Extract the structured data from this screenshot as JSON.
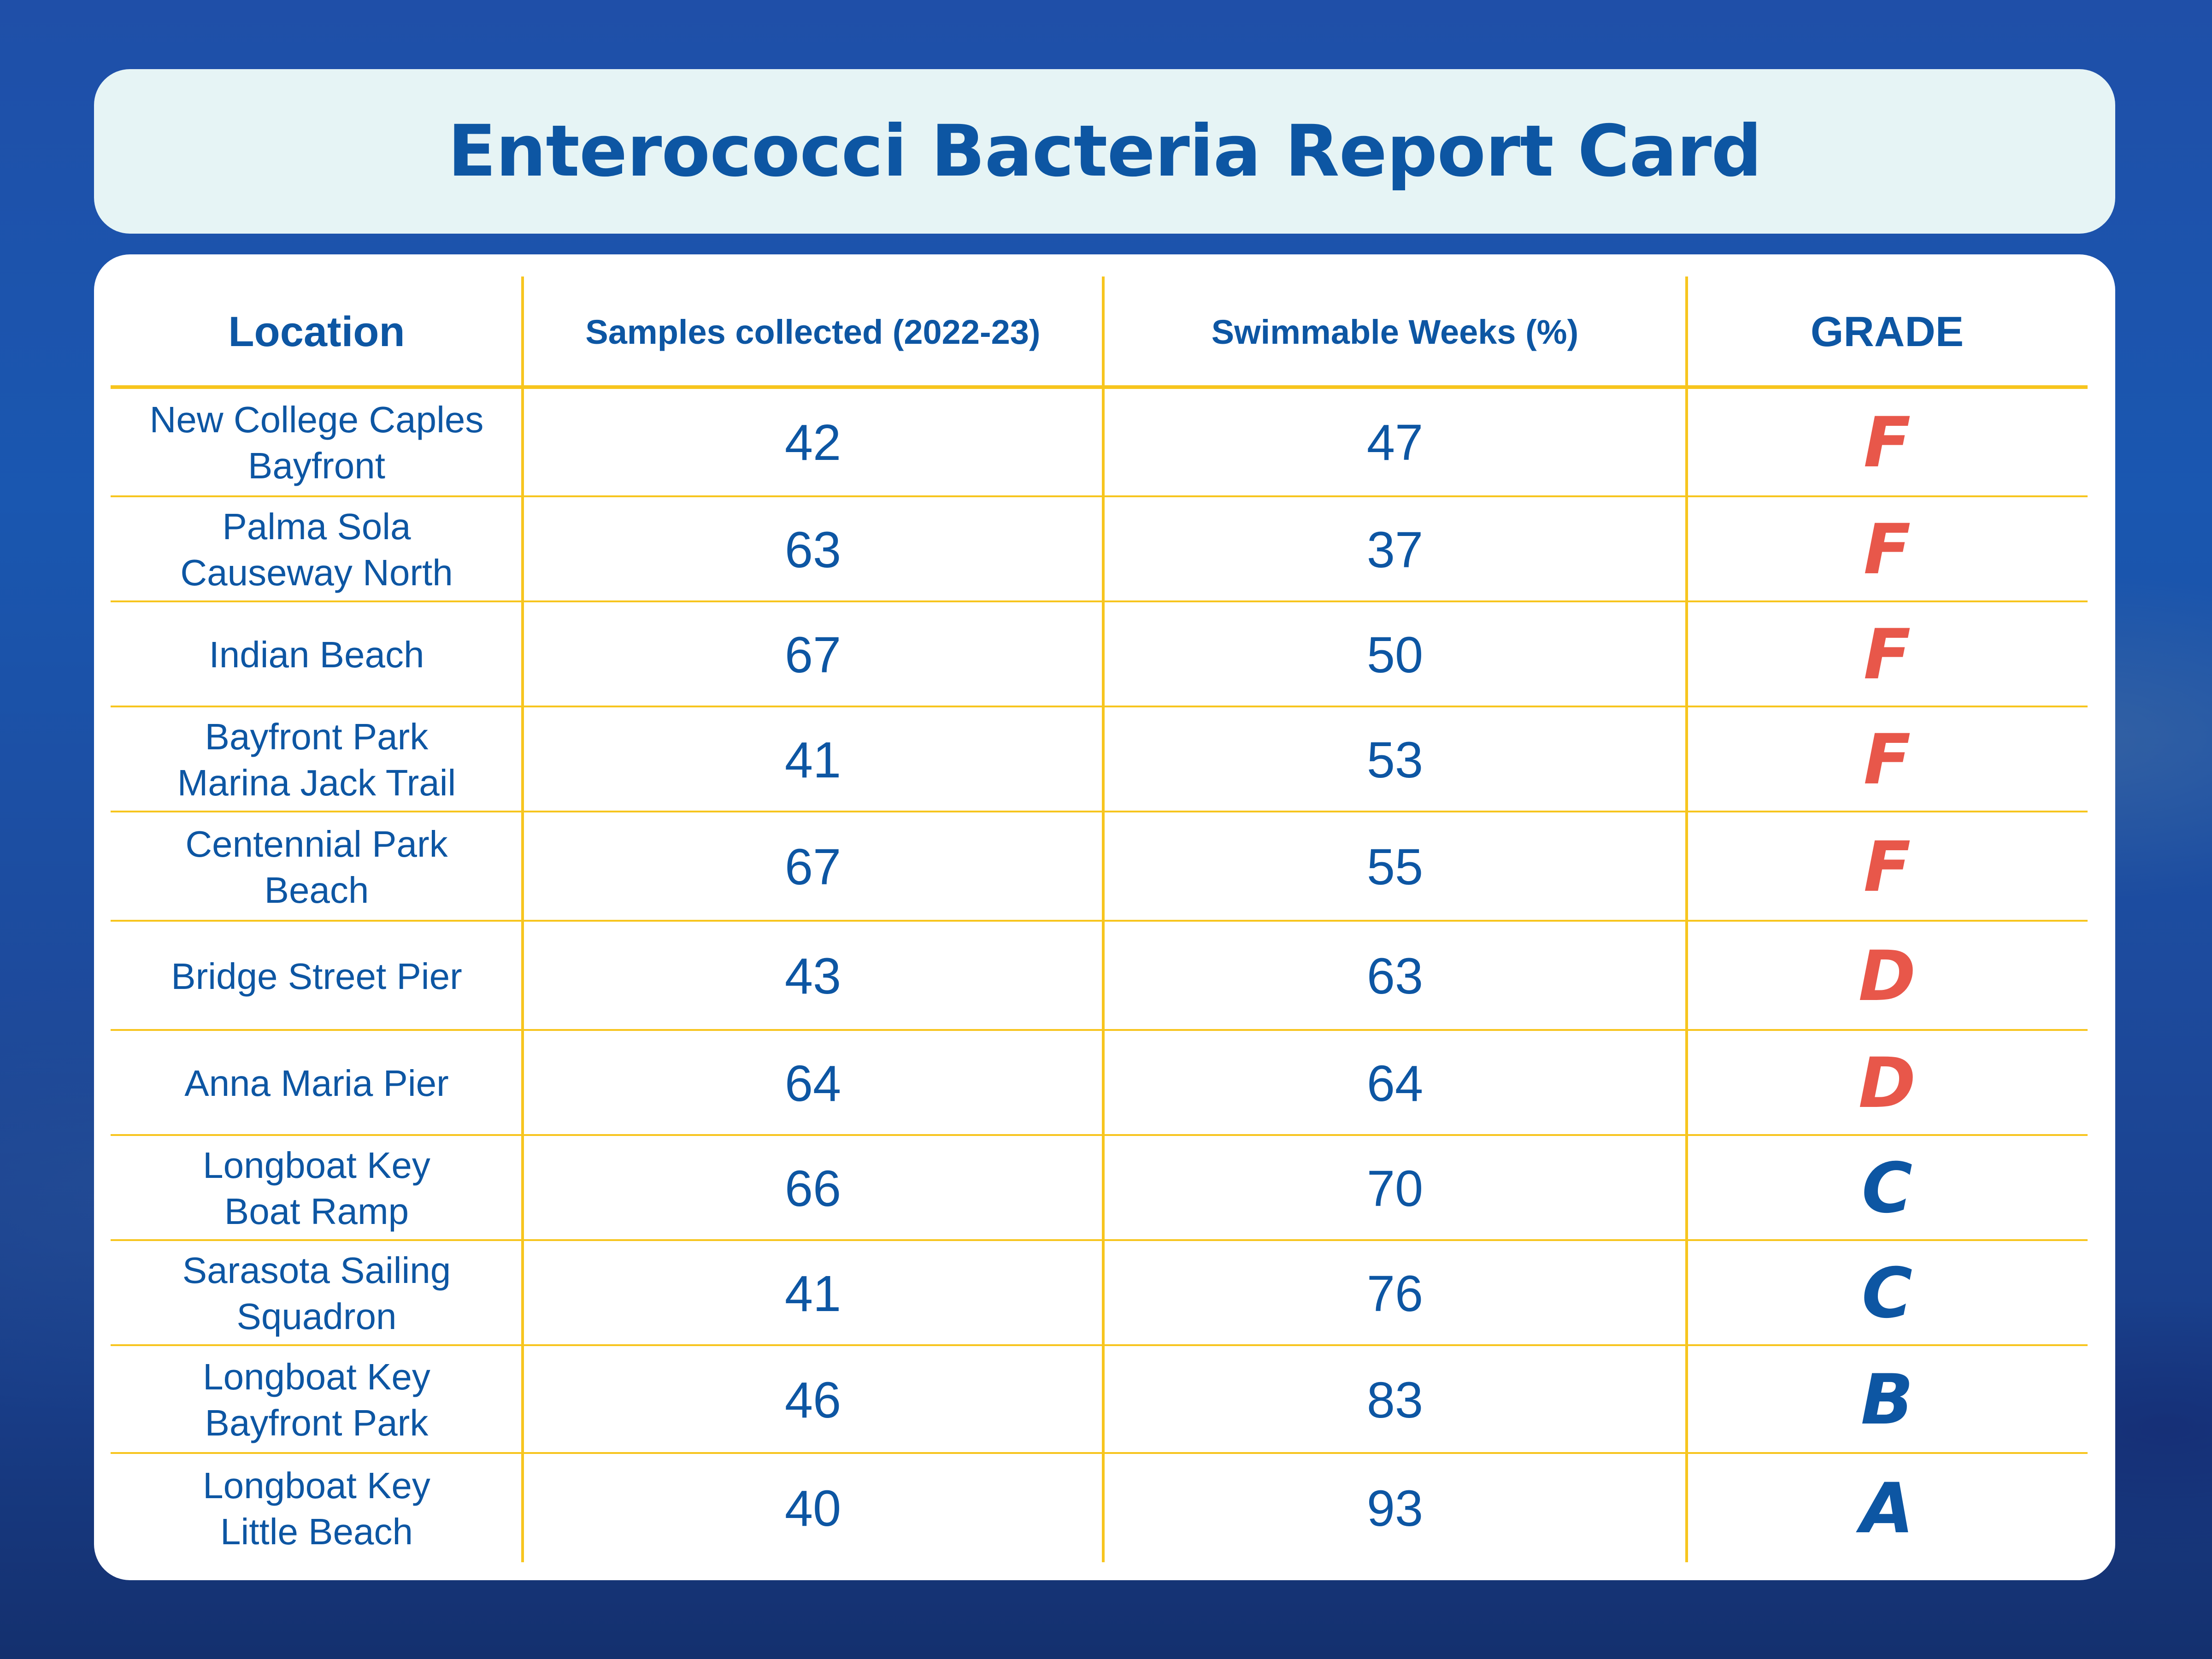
{
  "chart_data": {
    "type": "table",
    "title": "Enterococci Bacteria Report Card",
    "columns": [
      "Location",
      "Samples collected (2022-23)",
      "Swimmable Weeks (%)",
      "GRADE"
    ],
    "rows": [
      {
        "location": [
          "New College Caples",
          "Bayfront"
        ],
        "samples": "42",
        "weeks": "47",
        "grade": "F"
      },
      {
        "location": [
          "Palma Sola",
          "Causeway North"
        ],
        "samples": "63",
        "weeks": "37",
        "grade": "F"
      },
      {
        "location": [
          "Indian Beach"
        ],
        "samples": "67",
        "weeks": "50",
        "grade": "F"
      },
      {
        "location": [
          "Bayfront Park",
          "Marina Jack Trail"
        ],
        "samples": "41",
        "weeks": "53",
        "grade": "F"
      },
      {
        "location": [
          "Centennial Park",
          "Beach"
        ],
        "samples": "67",
        "weeks": "55",
        "grade": "F"
      },
      {
        "location": [
          "Bridge Street Pier"
        ],
        "samples": "43",
        "weeks": "63",
        "grade": "D"
      },
      {
        "location": [
          "Anna Maria Pier"
        ],
        "samples": "64",
        "weeks": "64",
        "grade": "D"
      },
      {
        "location": [
          "Longboat Key",
          "Boat Ramp"
        ],
        "samples": "66",
        "weeks": "70",
        "grade": "C"
      },
      {
        "location": [
          "Sarasota Sailing",
          "Squadron"
        ],
        "samples": "41",
        "weeks": "76",
        "grade": "C"
      },
      {
        "location": [
          "Longboat Key",
          "Bayfront Park"
        ],
        "samples": "46",
        "weeks": "83",
        "grade": "B"
      },
      {
        "location": [
          "Longboat Key",
          "Little Beach"
        ],
        "samples": "40",
        "weeks": "93",
        "grade": "A"
      }
    ]
  },
  "colors": {
    "text": "#0d56a3",
    "rule": "#f7c51e",
    "grade_fail": "#e8574a",
    "grade_pass": "#0d56a3",
    "title_card": "#e6f4f5",
    "card": "#ffffff"
  }
}
